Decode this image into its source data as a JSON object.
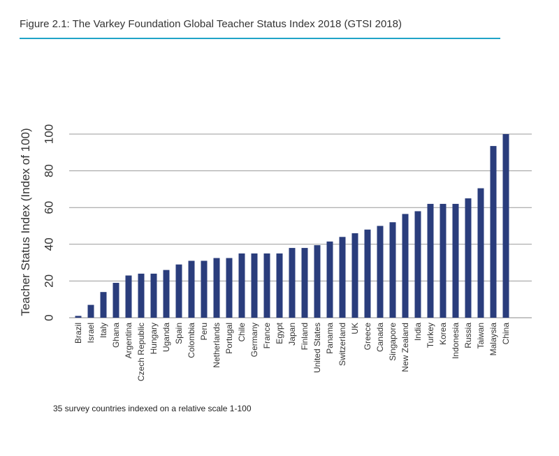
{
  "figure": {
    "title": "Figure 2.1: The Varkey Foundation Global Teacher Status Index 2018 (GTSI 2018)",
    "note": "35 survey countries indexed on a relative scale 1-100",
    "accent_color": "#1fa3c7"
  },
  "chart_data": {
    "type": "bar",
    "ylabel": "Teacher Status Index (Index of 100)",
    "xlabel": "",
    "ylim": [
      0,
      100
    ],
    "yticks": [
      0,
      20,
      40,
      60,
      80,
      100
    ],
    "grid": true,
    "bar_color": "#2a3d7c",
    "categories": [
      "Brazil",
      "Israel",
      "Italy",
      "Ghana",
      "Argentina",
      "Czech Republic",
      "Hungary",
      "Uganda",
      "Spain",
      "Colombia",
      "Peru",
      "Netherlands",
      "Portugal",
      "Chile",
      "Germany",
      "France",
      "Egypt",
      "Japan",
      "Finland",
      "United States",
      "Panama",
      "Switzerland",
      "UK",
      "Greece",
      "Canada",
      "Singapore",
      "New Zealand",
      "India",
      "Turkey",
      "Korea",
      "Indonesia",
      "Russia",
      "Taiwan",
      "Malaysia",
      "China"
    ],
    "values": [
      1,
      7,
      14,
      19,
      23,
      24,
      24,
      26,
      29,
      31,
      31,
      32.5,
      32.5,
      35,
      35,
      35,
      35,
      38,
      38,
      39.5,
      41.5,
      44,
      46,
      48,
      50,
      52,
      56.5,
      58,
      62,
      62,
      62,
      65,
      70.5,
      93.5,
      100
    ]
  }
}
